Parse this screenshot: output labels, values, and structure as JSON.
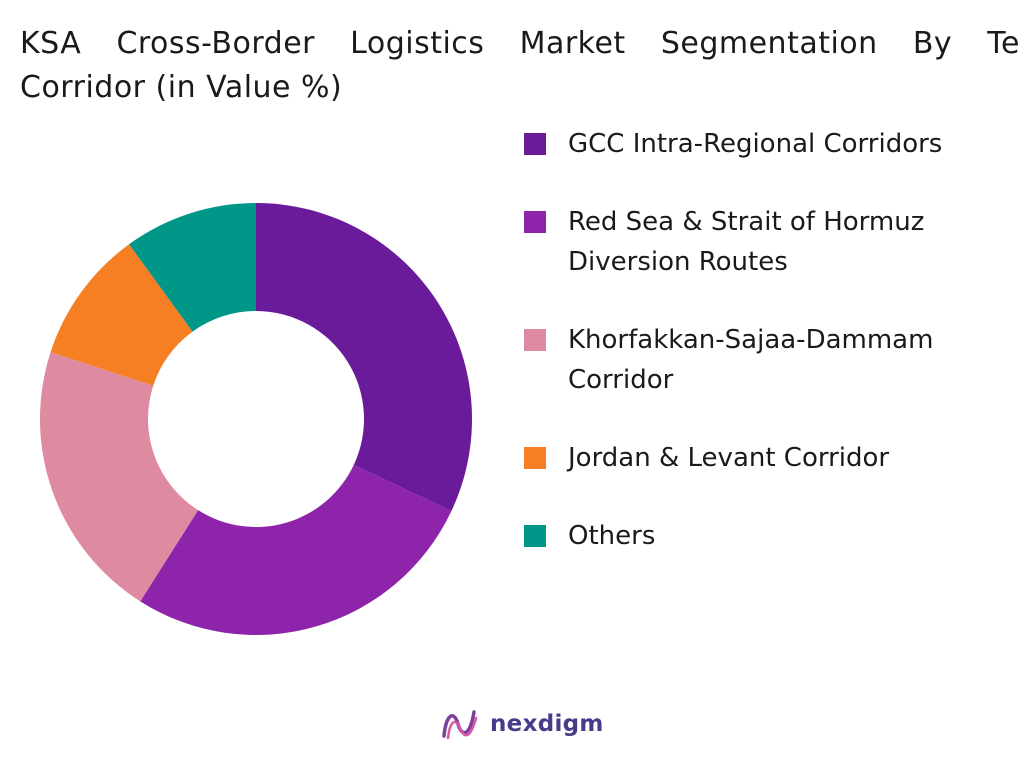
{
  "title_line1": "KSA Cross-Border Logistics Market Segmentation By Te",
  "title_line2": "Corridor (in Value %)",
  "brand": "nexdigm",
  "chart_data": {
    "type": "pie",
    "donut": true,
    "title": "KSA Cross-Border Logistics Market Segmentation By Te Corridor (in Value %)",
    "legend_position": "right",
    "slices": [
      {
        "label": "GCC Intra-Regional Corridors",
        "value": 32,
        "color": "#6a1b9a"
      },
      {
        "label": "Red Sea & Strait of Hormuz Diversion Routes",
        "value": 27,
        "color": "#8e24aa"
      },
      {
        "label": "Khorfakkan-Sajaa-Dammam Corridor",
        "value": 21,
        "color": "#de8aa0"
      },
      {
        "label": "Jordan & Levant Corridor",
        "value": 10,
        "color": "#f57f22"
      },
      {
        "label": "Others",
        "value": 10,
        "color": "#009688"
      }
    ]
  }
}
